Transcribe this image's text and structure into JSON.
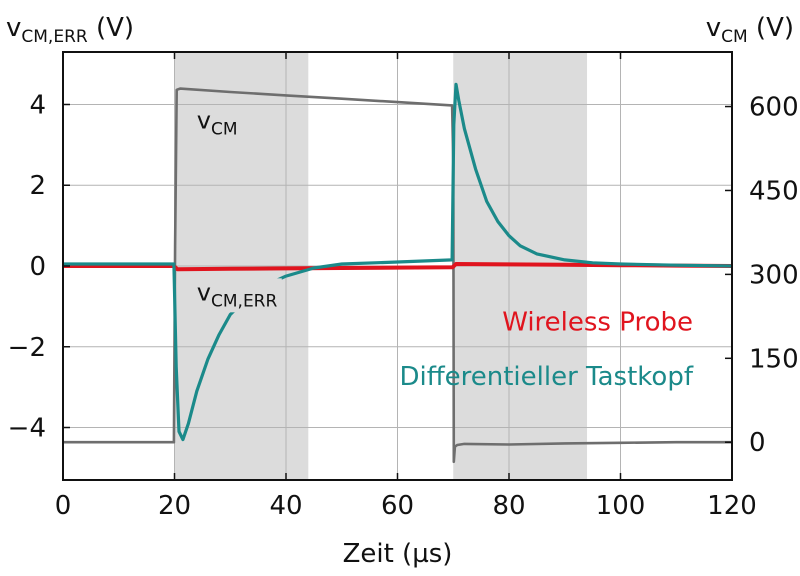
{
  "chart_data": {
    "type": "line",
    "xlabel": "Zeit  (µs)",
    "ylabel_left": {
      "main": "v",
      "sub": "CM,ERR",
      "unit": "(V)"
    },
    "ylabel_right": {
      "main": "v",
      "sub": "CM",
      "unit": "(V)"
    },
    "xlim": [
      0,
      120
    ],
    "ylim_left": [
      -5.3,
      5.3
    ],
    "ylim_right": [
      -67.5,
      697.5
    ],
    "x_ticks": [
      "0",
      "20",
      "40",
      "60",
      "80",
      "100",
      "120"
    ],
    "y_left_ticks": [
      "4",
      "2",
      "0",
      "-2",
      "-4"
    ],
    "y_right_ticks": [
      "600",
      "450",
      "300",
      "150",
      "0"
    ],
    "grid": true,
    "shaded_regions": [
      [
        20,
        44
      ],
      [
        70,
        94
      ]
    ],
    "annotations": [
      {
        "main": "v",
        "sub": "CM",
        "x": 24,
        "y_left": 3.4
      },
      {
        "main": "v",
        "sub": "CM,ERR",
        "x": 24,
        "y_left": -0.85
      }
    ],
    "legend": {
      "placement": "center-right",
      "entries": [
        {
          "label": "Wireless Probe",
          "color": "#e0141e"
        },
        {
          "label": "Differentieller Tastkopf",
          "color": "#1b8a8a"
        }
      ]
    },
    "series": [
      {
        "name": "vCM",
        "axis": "right",
        "color": "#6e6e6e",
        "x": [
          0,
          19.9,
          20.1,
          20.4,
          21,
          30,
          40,
          50,
          60,
          69.8,
          70,
          70.1,
          70.3,
          70.7,
          72,
          80,
          90,
          100,
          110,
          120
        ],
        "y": [
          0,
          0,
          350,
          630,
          632,
          626,
          620,
          614,
          608,
          602,
          500,
          -35,
          -8,
          -5,
          -3,
          -4,
          -2,
          -1,
          0,
          0
        ]
      },
      {
        "name": "Wireless Probe",
        "axis": "left",
        "color": "#e0141e",
        "x": [
          0,
          19.9,
          20.5,
          30,
          40,
          50,
          60,
          69.9,
          70.5,
          80,
          90,
          100,
          110,
          120
        ],
        "y": [
          0,
          0,
          -0.08,
          -0.07,
          -0.06,
          -0.05,
          -0.04,
          -0.03,
          0.05,
          0.04,
          0.03,
          0.02,
          0.01,
          0
        ]
      },
      {
        "name": "Differentieller Tastkopf",
        "axis": "left",
        "color": "#1b8a8a",
        "x": [
          0,
          19.9,
          20.3,
          20.8,
          21.5,
          22.5,
          24,
          26,
          28,
          30,
          33,
          36,
          40,
          45,
          50,
          60,
          69.8,
          70.1,
          70.5,
          71,
          72,
          74,
          76,
          78,
          80,
          82,
          85,
          90,
          95,
          100,
          110,
          120
        ],
        "y": [
          0.05,
          0.05,
          -2.5,
          -4.1,
          -4.3,
          -3.9,
          -3.1,
          -2.3,
          -1.7,
          -1.2,
          -0.8,
          -0.5,
          -0.25,
          -0.05,
          0.05,
          0.1,
          0.15,
          3.5,
          4.5,
          4.1,
          3.4,
          2.4,
          1.6,
          1.1,
          0.75,
          0.5,
          0.3,
          0.15,
          0.08,
          0.05,
          0.02,
          0
        ]
      }
    ]
  }
}
